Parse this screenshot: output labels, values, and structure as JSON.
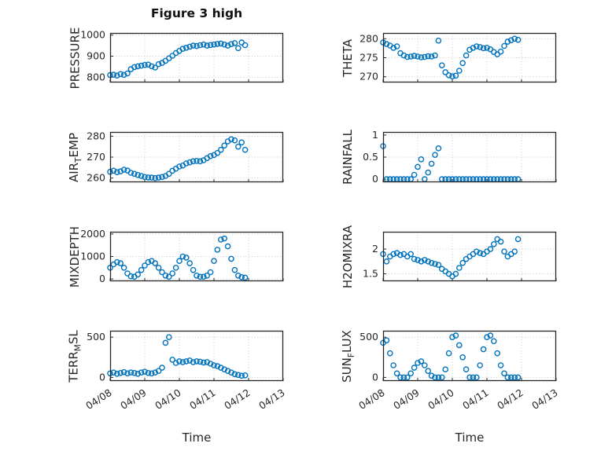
{
  "figure": {
    "title": "Figure 3 high",
    "marker_color": "#0072BD",
    "axis_color": "#262626",
    "grid_color": "#c8c8c8",
    "x_axis": {
      "label": "Time",
      "tick_labels": [
        "04/08",
        "04/09",
        "04/10",
        "04/11",
        "04/12",
        "04/13"
      ],
      "tick_positions_days": [
        0,
        1,
        2,
        3,
        4,
        5
      ]
    },
    "x_days": [
      0,
      0.1,
      0.2,
      0.3,
      0.4,
      0.5,
      0.6,
      0.7,
      0.8,
      0.9,
      1,
      1.1,
      1.2,
      1.3,
      1.4,
      1.5,
      1.6,
      1.7,
      1.8,
      1.9,
      2,
      2.1,
      2.2,
      2.3,
      2.4,
      2.5,
      2.6,
      2.7,
      2.8,
      2.9,
      3,
      3.1,
      3.2,
      3.3,
      3.4,
      3.5,
      3.6,
      3.7,
      3.8,
      3.9
    ]
  },
  "chart_data": [
    {
      "type": "scatter",
      "name": "PRESSURE",
      "ylabel": "PRESSURE",
      "ylabel_rich": [
        {
          "t": "PRESSURE"
        }
      ],
      "yticks": [
        800,
        900,
        1000
      ],
      "ylim": [
        775,
        1010
      ],
      "y": [
        810,
        812,
        808,
        815,
        811,
        818,
        838,
        848,
        852,
        855,
        858,
        860,
        852,
        846,
        862,
        868,
        878,
        890,
        902,
        915,
        925,
        935,
        940,
        945,
        950,
        948,
        952,
        955,
        950,
        953,
        955,
        958,
        960,
        955,
        950,
        957,
        962,
        938,
        965,
        952
      ]
    },
    {
      "type": "scatter",
      "name": "THETA",
      "ylabel": "THETA",
      "ylabel_rich": [
        {
          "t": "THETA"
        }
      ],
      "yticks": [
        270,
        275,
        280
      ],
      "ylim": [
        268.5,
        281.5
      ],
      "y": [
        279,
        278.6,
        278.2,
        277.6,
        278,
        276.2,
        275.6,
        275.2,
        275.3,
        275.5,
        275.3,
        275.1,
        275.2,
        275.4,
        275.3,
        275.6,
        279.5,
        273,
        271.2,
        270.4,
        270.1,
        270.3,
        271.6,
        273.6,
        275.6,
        277.1,
        277.6,
        278,
        277.8,
        277.5,
        277.6,
        277.2,
        276.5,
        275.9,
        276.6,
        278.1,
        279.2,
        279.6,
        280,
        279.7
      ]
    },
    {
      "type": "scatter",
      "name": "AIR_TEMP",
      "ylabel": "AIR_TEMP",
      "ylabel_rich": [
        {
          "t": "AIR"
        },
        {
          "t": "T",
          "sub": true
        },
        {
          "t": "EMP"
        }
      ],
      "yticks": [
        260,
        270,
        280
      ],
      "ylim": [
        258,
        282
      ],
      "y": [
        263,
        263.5,
        262.8,
        263.2,
        264,
        263.6,
        262.5,
        262,
        261.5,
        261,
        260.5,
        260.3,
        260.2,
        260,
        260.2,
        260.5,
        261,
        262,
        263.5,
        264.5,
        265.5,
        266,
        267,
        267.5,
        268,
        268.2,
        268,
        268.5,
        269.5,
        270.5,
        271,
        272,
        273.5,
        275.5,
        277.5,
        278.5,
        278,
        275,
        277,
        273.5
      ]
    },
    {
      "type": "scatter",
      "name": "RAINFALL",
      "ylabel": "RAINFALL",
      "ylabel_rich": [
        {
          "t": "RAINFALL"
        }
      ],
      "yticks": [
        0,
        0.5,
        1
      ],
      "ylim": [
        -0.07,
        1.07
      ],
      "y": [
        0.75,
        0,
        0,
        0,
        0,
        0,
        0,
        0,
        0,
        0.1,
        0.28,
        0.45,
        0,
        0.15,
        0.35,
        0.55,
        0.7,
        0,
        0,
        0,
        0,
        0,
        0,
        0,
        0,
        0,
        0,
        0,
        0,
        0,
        0,
        0,
        0,
        0,
        0,
        0,
        0,
        0,
        0,
        0
      ]
    },
    {
      "type": "scatter",
      "name": "MIXDEPTH",
      "ylabel": "MIXDEPTH",
      "ylabel_rich": [
        {
          "t": "MIXDEPTH"
        }
      ],
      "yticks": [
        0,
        1000,
        2000
      ],
      "ylim": [
        -100,
        2100
      ],
      "y": [
        500,
        650,
        750,
        700,
        500,
        250,
        120,
        100,
        200,
        400,
        600,
        750,
        800,
        700,
        500,
        300,
        150,
        100,
        250,
        500,
        800,
        1000,
        950,
        700,
        400,
        150,
        100,
        100,
        150,
        300,
        800,
        1300,
        1750,
        1800,
        1450,
        900,
        400,
        150,
        80,
        60
      ]
    },
    {
      "type": "scatter",
      "name": "H2OMIXRA",
      "ylabel": "H2OMIXRA",
      "ylabel_rich": [
        {
          "t": "H2OMIXRA"
        }
      ],
      "yticks": [
        1.5,
        2
      ],
      "ylim": [
        1.35,
        2.35
      ],
      "y": [
        1.9,
        1.75,
        1.85,
        1.9,
        1.92,
        1.88,
        1.9,
        1.85,
        1.9,
        1.8,
        1.78,
        1.75,
        1.78,
        1.75,
        1.72,
        1.7,
        1.68,
        1.6,
        1.55,
        1.5,
        1.45,
        1.5,
        1.62,
        1.72,
        1.8,
        1.85,
        1.9,
        1.95,
        1.92,
        1.9,
        1.95,
        2.0,
        2.1,
        2.2,
        2.15,
        1.95,
        1.85,
        1.9,
        1.95,
        2.2
      ]
    },
    {
      "type": "scatter",
      "name": "TERR_MSL",
      "ylabel": "TERR_MSL",
      "ylabel_rich": [
        {
          "t": "TERR"
        },
        {
          "t": "M",
          "sub": true
        },
        {
          "t": "SL"
        }
      ],
      "yticks": [
        0,
        500
      ],
      "ylim": [
        -45,
        580
      ],
      "y": [
        50,
        60,
        45,
        55,
        65,
        50,
        60,
        55,
        45,
        60,
        70,
        55,
        50,
        60,
        80,
        120,
        430,
        500,
        220,
        180,
        200,
        190,
        200,
        210,
        190,
        200,
        195,
        185,
        190,
        170,
        150,
        140,
        120,
        100,
        80,
        60,
        40,
        30,
        20,
        25
      ]
    },
    {
      "type": "scatter",
      "name": "SUN_FLUX",
      "ylabel": "SUN_FLUX",
      "ylabel_rich": [
        {
          "t": "SUN"
        },
        {
          "t": "F",
          "sub": true
        },
        {
          "t": "LUX"
        }
      ],
      "yticks": [
        0,
        500
      ],
      "ylim": [
        -45,
        580
      ],
      "y": [
        430,
        460,
        300,
        150,
        50,
        0,
        0,
        0,
        50,
        120,
        180,
        200,
        150,
        80,
        20,
        0,
        0,
        0,
        100,
        300,
        500,
        520,
        400,
        250,
        100,
        0,
        0,
        0,
        150,
        350,
        500,
        520,
        450,
        300,
        150,
        50,
        0,
        0,
        0,
        0
      ]
    }
  ]
}
